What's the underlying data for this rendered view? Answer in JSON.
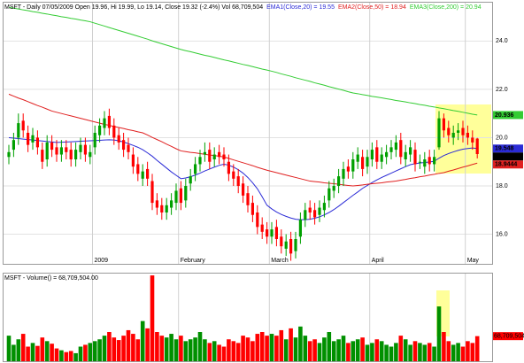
{
  "chart_data": [
    {
      "type": "candlestick",
      "title": "MSFT - Daily 07/05/2009 Open 19.96, Hi 19.99, Lo 19.14, Close 19.32 (-2.4%) Vol 68,709,504",
      "ylim": [
        14.7,
        25.7
      ],
      "yticks": [
        {
          "value": 24,
          "label": "24.0"
        },
        {
          "value": 22,
          "label": "22.0"
        },
        {
          "value": 20,
          "label": "20.0"
        },
        {
          "value": 18,
          "label": "18.0"
        },
        {
          "value": 16,
          "label": "16.0"
        }
      ],
      "xticks": [
        {
          "value": 18,
          "label": "2009"
        },
        {
          "value": 36,
          "label": "February"
        },
        {
          "value": 55,
          "label": "March"
        },
        {
          "value": 76,
          "label": "April"
        },
        {
          "value": 96,
          "label": "May"
        }
      ],
      "grid": true,
      "up_color": "#00a000",
      "down_color": "#ff0000",
      "last_color": "#000000",
      "ohlc": {
        "open": [
          19.2,
          19.5,
          20.0,
          20.7,
          20.2,
          19.8,
          20.0,
          19.5,
          19.1,
          19.8,
          19.6,
          19.3,
          19.6,
          19.5,
          19.1,
          19.4,
          19.7,
          19.2,
          19.6,
          20.1,
          20.4,
          20.9,
          20.5,
          20.1,
          19.9,
          19.7,
          19.3,
          18.9,
          18.3,
          18.7,
          18.2,
          17.4,
          17.2,
          16.9,
          17.1,
          17.3,
          17.9,
          17.4,
          18.1,
          18.5,
          18.9,
          19.3,
          19.5,
          19.1,
          19.4,
          19.3,
          19.0,
          18.6,
          18.4,
          18.1,
          17.7,
          17.3,
          16.9,
          16.4,
          16.2,
          15.9,
          16.3,
          15.9,
          15.4,
          15.8,
          15.3,
          15.9,
          16.6,
          17.1,
          17.0,
          16.8,
          17.0,
          17.4,
          17.8,
          18.0,
          18.3,
          18.8,
          18.6,
          19.0,
          19.2,
          18.8,
          19.1,
          19.6,
          19.0,
          19.2,
          19.4,
          19.5,
          19.9,
          19.1,
          19.3,
          19.5,
          19.0,
          18.8,
          19.2,
          18.9,
          19.6,
          20.8,
          20.4,
          20.0,
          20.2,
          20.4,
          20.2,
          20.0,
          19.96
        ],
        "high": [
          19.7,
          20.2,
          21.0,
          21.0,
          20.5,
          20.4,
          20.3,
          19.8,
          20.1,
          20.1,
          19.9,
          19.9,
          19.9,
          19.8,
          19.8,
          20.0,
          20.0,
          19.7,
          20.5,
          20.8,
          21.1,
          21.2,
          20.8,
          20.4,
          20.2,
          20.0,
          19.6,
          19.2,
          18.9,
          19.0,
          18.5,
          17.7,
          17.5,
          17.5,
          17.7,
          18.1,
          18.2,
          18.3,
          18.7,
          19.2,
          19.5,
          19.8,
          19.8,
          19.6,
          19.7,
          19.6,
          19.3,
          18.9,
          18.7,
          18.4,
          18.0,
          17.6,
          17.2,
          16.7,
          16.5,
          16.5,
          16.6,
          16.2,
          16.0,
          16.1,
          16.1,
          16.9,
          17.3,
          17.4,
          17.3,
          17.4,
          17.6,
          18.2,
          18.3,
          18.7,
          19.0,
          19.1,
          19.4,
          19.6,
          19.5,
          19.5,
          19.8,
          19.9,
          19.6,
          19.7,
          19.9,
          20.1,
          20.2,
          19.7,
          19.9,
          19.8,
          19.3,
          19.4,
          19.5,
          19.5,
          21.1,
          21.0,
          20.7,
          20.5,
          20.6,
          20.7,
          20.5,
          20.3,
          19.99
        ],
        "low": [
          18.9,
          19.2,
          19.7,
          20.0,
          19.4,
          19.5,
          19.3,
          18.7,
          18.8,
          19.2,
          19.0,
          19.0,
          19.1,
          18.8,
          18.8,
          19.1,
          19.0,
          18.9,
          19.3,
          19.8,
          20.1,
          20.1,
          19.7,
          19.5,
          19.2,
          19.1,
          18.5,
          18.2,
          18.0,
          18.0,
          17.0,
          16.8,
          16.6,
          16.6,
          16.8,
          17.0,
          17.0,
          17.1,
          17.8,
          18.2,
          18.6,
          19.0,
          18.7,
          18.8,
          18.9,
          18.8,
          18.2,
          18.0,
          17.7,
          17.3,
          16.9,
          16.5,
          16.0,
          15.8,
          15.6,
          15.6,
          15.5,
          15.2,
          15.1,
          14.9,
          15.0,
          15.6,
          16.3,
          16.6,
          16.4,
          16.5,
          16.7,
          17.1,
          17.5,
          17.7,
          18.0,
          18.3,
          18.3,
          18.7,
          18.4,
          18.5,
          18.8,
          18.7,
          18.7,
          18.9,
          19.1,
          19.2,
          18.9,
          18.8,
          19.0,
          18.6,
          18.7,
          18.5,
          18.6,
          18.6,
          19.5,
          20.0,
          19.8,
          19.7,
          19.9,
          19.8,
          19.7,
          19.5,
          19.14
        ],
        "close": [
          19.4,
          19.9,
          20.6,
          20.3,
          19.7,
          20.1,
          19.6,
          19.0,
          19.8,
          19.5,
          19.3,
          19.6,
          19.4,
          19.1,
          19.5,
          19.7,
          19.3,
          19.4,
          20.2,
          20.5,
          20.8,
          20.4,
          20.0,
          19.8,
          19.5,
          19.4,
          18.8,
          18.5,
          18.6,
          18.3,
          17.3,
          17.1,
          16.9,
          17.2,
          17.4,
          17.8,
          17.3,
          18.0,
          18.4,
          18.9,
          19.2,
          19.4,
          19.0,
          19.3,
          19.2,
          19.1,
          18.5,
          18.3,
          18.0,
          17.6,
          17.2,
          16.8,
          16.3,
          16.1,
          15.9,
          16.2,
          15.8,
          15.5,
          15.7,
          15.2,
          15.8,
          16.6,
          17.0,
          16.9,
          16.7,
          17.1,
          17.3,
          17.9,
          18.0,
          18.4,
          18.7,
          18.6,
          19.1,
          19.3,
          18.7,
          19.2,
          19.5,
          19.0,
          19.3,
          19.4,
          19.6,
          19.8,
          19.2,
          19.4,
          19.6,
          18.9,
          19.0,
          19.1,
          18.9,
          19.2,
          20.8,
          20.3,
          20.1,
          20.2,
          20.3,
          20.1,
          20.0,
          19.8,
          19.32
        ]
      },
      "series": [
        {
          "name": "EMA1(Close,20) = 19.55",
          "color": "#2b2bd6",
          "values": [
            20.0,
            19.98,
            19.96,
            19.94,
            19.92,
            19.9,
            19.88,
            19.86,
            19.84,
            19.82,
            19.8,
            19.81,
            19.82,
            19.83,
            19.84,
            19.85,
            19.86,
            19.87,
            19.88,
            19.89,
            19.9,
            19.91,
            19.9,
            19.87,
            19.82,
            19.75,
            19.68,
            19.6,
            19.5,
            19.37,
            19.23,
            19.06,
            18.9,
            18.74,
            18.58,
            18.44,
            18.3,
            18.33,
            18.38,
            18.45,
            18.53,
            18.62,
            18.7,
            18.78,
            18.85,
            18.9,
            18.86,
            18.78,
            18.67,
            18.53,
            18.35,
            18.13,
            17.88,
            17.55,
            17.2,
            17.05,
            16.92,
            16.82,
            16.74,
            16.67,
            16.62,
            16.6,
            16.6,
            16.62,
            16.66,
            16.72,
            16.8,
            16.9,
            17.02,
            17.16,
            17.31,
            17.46,
            17.61,
            17.75,
            17.9,
            18.02,
            18.14,
            18.25,
            18.35,
            18.44,
            18.53,
            18.62,
            18.71,
            18.8,
            18.88,
            18.92,
            18.95,
            18.97,
            18.99,
            19.02,
            19.15,
            19.26,
            19.34,
            19.41,
            19.47,
            19.52,
            19.55,
            19.57,
            19.548
          ]
        },
        {
          "name": "EMA2(Close,50) = 18.94",
          "color": "#e02020",
          "values": [
            21.8,
            21.72,
            21.64,
            21.57,
            21.49,
            21.41,
            21.33,
            21.26,
            21.18,
            21.1,
            21.05,
            21.0,
            20.95,
            20.9,
            20.85,
            20.8,
            20.75,
            20.7,
            20.65,
            20.6,
            20.55,
            20.51,
            20.46,
            20.42,
            20.38,
            20.33,
            20.29,
            20.24,
            20.2,
            20.11,
            20.01,
            19.92,
            19.83,
            19.73,
            19.64,
            19.54,
            19.45,
            19.42,
            19.39,
            19.37,
            19.34,
            19.31,
            19.28,
            19.26,
            19.23,
            19.2,
            19.14,
            19.08,
            19.02,
            18.96,
            18.9,
            18.84,
            18.77,
            18.71,
            18.65,
            18.6,
            18.55,
            18.5,
            18.45,
            18.4,
            18.35,
            18.3,
            18.25,
            18.2,
            18.18,
            18.16,
            18.13,
            18.11,
            18.09,
            18.07,
            18.04,
            18.02,
            18.0,
            18.02,
            18.04,
            18.07,
            18.09,
            18.11,
            18.13,
            18.16,
            18.18,
            18.2,
            18.24,
            18.27,
            18.31,
            18.34,
            18.38,
            18.41,
            18.45,
            18.48,
            18.52,
            18.55,
            18.61,
            18.66,
            18.72,
            18.78,
            18.83,
            18.89,
            18.9444
          ]
        },
        {
          "name": "EMA3(Close,200) = 20.94",
          "color": "#33cc33",
          "values": [
            25.4,
            25.36,
            25.33,
            25.29,
            25.26,
            25.22,
            25.19,
            25.15,
            25.12,
            25.08,
            25.05,
            25.01,
            24.98,
            24.94,
            24.91,
            24.87,
            24.84,
            24.8,
            24.74,
            24.68,
            24.62,
            24.56,
            24.5,
            24.44,
            24.38,
            24.32,
            24.26,
            24.2,
            24.14,
            24.08,
            24.01,
            23.95,
            23.89,
            23.83,
            23.77,
            23.71,
            23.65,
            23.6,
            23.56,
            23.51,
            23.46,
            23.41,
            23.37,
            23.32,
            23.27,
            23.22,
            23.18,
            23.13,
            23.08,
            23.03,
            22.99,
            22.94,
            22.89,
            22.84,
            22.8,
            22.75,
            22.7,
            22.64,
            22.59,
            22.54,
            22.48,
            22.43,
            22.38,
            22.33,
            22.27,
            22.22,
            22.17,
            22.11,
            22.06,
            22.01,
            21.96,
            21.9,
            21.85,
            21.82,
            21.78,
            21.75,
            21.71,
            21.68,
            21.65,
            21.61,
            21.58,
            21.54,
            21.51,
            21.48,
            21.44,
            21.41,
            21.37,
            21.34,
            21.3,
            21.27,
            21.23,
            21.2,
            21.16,
            21.12,
            21.09,
            21.05,
            21.01,
            20.97,
            20.936
          ]
        }
      ]
    },
    {
      "type": "bar",
      "title": "MSFT - Volume() = 68,709,504.00",
      "ylim": [
        0,
        240000000
      ],
      "up_color": "#009000",
      "down_color": "#ff0000",
      "label_color": "#ff0000",
      "last_value_label": "68,709,504",
      "values": [
        70000000,
        45000000,
        60000000,
        75000000,
        40000000,
        50000000,
        42000000,
        65000000,
        55000000,
        48000000,
        35000000,
        30000000,
        25000000,
        28000000,
        22000000,
        40000000,
        45000000,
        50000000,
        55000000,
        60000000,
        70000000,
        80000000,
        65000000,
        58000000,
        70000000,
        85000000,
        75000000,
        60000000,
        110000000,
        90000000,
        235000000,
        80000000,
        70000000,
        65000000,
        75000000,
        60000000,
        70000000,
        55000000,
        60000000,
        65000000,
        80000000,
        60000000,
        50000000,
        55000000,
        45000000,
        40000000,
        60000000,
        55000000,
        50000000,
        70000000,
        65000000,
        55000000,
        75000000,
        80000000,
        70000000,
        75000000,
        70000000,
        85000000,
        60000000,
        90000000,
        65000000,
        95000000,
        70000000,
        55000000,
        60000000,
        50000000,
        65000000,
        80000000,
        55000000,
        60000000,
        70000000,
        50000000,
        55000000,
        60000000,
        65000000,
        45000000,
        50000000,
        60000000,
        55000000,
        45000000,
        40000000,
        50000000,
        70000000,
        60000000,
        45000000,
        55000000,
        50000000,
        45000000,
        50000000,
        40000000,
        150000000,
        80000000,
        55000000,
        45000000,
        50000000,
        40000000,
        55000000,
        50000000,
        68709504
      ]
    }
  ]
}
